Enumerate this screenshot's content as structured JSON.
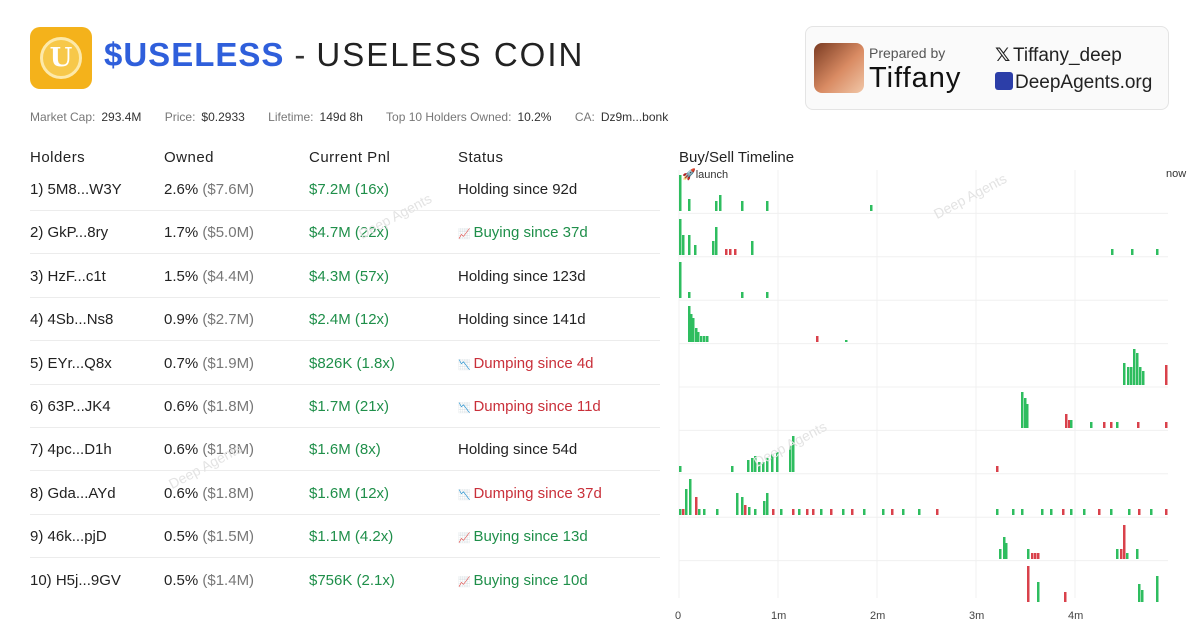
{
  "header": {
    "ticker": "$USELESS",
    "separator": "-",
    "coin_name": "USELESS COIN",
    "logo_letter": "U"
  },
  "card": {
    "prepared_by_label": "Prepared by",
    "author": "Tiffany",
    "x_handle": "Tiffany_deep",
    "site": "DeepAgents.org"
  },
  "stats": [
    {
      "label": "Market Cap:",
      "value": "293.4M"
    },
    {
      "label": "Price:",
      "value": "$0.2933"
    },
    {
      "label": "Lifetime:",
      "value": "149d 8h"
    },
    {
      "label": "Top 10 Holders Owned:",
      "value": "10.2%"
    },
    {
      "label": "CA:",
      "value": "Dz9m...bonk"
    }
  ],
  "columns": {
    "holders": "Holders",
    "owned": "Owned",
    "pnl": "Current Pnl",
    "status": "Status",
    "timeline": "Buy/Sell Timeline"
  },
  "rows": [
    {
      "holder": "1) 5M8...W3Y",
      "pct": "2.6%",
      "usd": "($7.6M)",
      "pnl": "$7.2M (16x)",
      "status": "Holding since 92d",
      "kind": "hold"
    },
    {
      "holder": "2) GkP...8ry",
      "pct": "1.7%",
      "usd": "($5.0M)",
      "pnl": "$4.7M (22x)",
      "status": "Buying since 37d",
      "kind": "buy"
    },
    {
      "holder": "3) HzF...c1t",
      "pct": "1.5%",
      "usd": "($4.4M)",
      "pnl": "$4.3M (57x)",
      "status": "Holding since 123d",
      "kind": "hold"
    },
    {
      "holder": "4) 4Sb...Ns8",
      "pct": "0.9%",
      "usd": "($2.7M)",
      "pnl": "$2.4M (12x)",
      "status": "Holding since 141d",
      "kind": "hold"
    },
    {
      "holder": "5) EYr...Q8x",
      "pct": "0.7%",
      "usd": "($1.9M)",
      "pnl": "$826K (1.8x)",
      "status": "Dumping since 4d",
      "kind": "dump"
    },
    {
      "holder": "6) 63P...JK4",
      "pct": "0.6%",
      "usd": "($1.8M)",
      "pnl": "$1.7M (21x)",
      "status": "Dumping since 11d",
      "kind": "dump"
    },
    {
      "holder": "7) 4pc...D1h",
      "pct": "0.6%",
      "usd": "($1.8M)",
      "pnl": "$1.6M (8x)",
      "status": "Holding since 54d",
      "kind": "hold"
    },
    {
      "holder": "8) Gda...AYd",
      "pct": "0.6%",
      "usd": "($1.8M)",
      "pnl": "$1.6M (12x)",
      "status": "Dumping since 37d",
      "kind": "dump"
    },
    {
      "holder": "9) 46k...pjD",
      "pct": "0.5%",
      "usd": "($1.5M)",
      "pnl": "$1.1M (4.2x)",
      "status": "Buying since 13d",
      "kind": "buy"
    },
    {
      "holder": "10) H5j...9GV",
      "pct": "0.5%",
      "usd": "($1.4M)",
      "pnl": "$756K (2.1x)",
      "status": "Buying since 10d",
      "kind": "buy"
    }
  ],
  "timeline": {
    "launch_label": "🚀launch",
    "now_label": "now",
    "x_ticks": [
      "0",
      "1m",
      "2m",
      "3m",
      "4m"
    ],
    "colors": {
      "buy": "#2ebd5f",
      "sell": "#d9414b",
      "grid": "#f0f0f0"
    }
  },
  "watermark": "Deep Agents"
}
